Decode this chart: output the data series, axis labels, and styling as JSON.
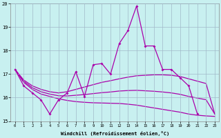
{
  "xlabel": "Windchill (Refroidissement éolien,°C)",
  "bg_color": "#c8f0f0",
  "grid_color": "#a0b8c8",
  "line_color": "#aa00aa",
  "xlim": [
    -0.5,
    23.5
  ],
  "ylim": [
    15,
    20
  ],
  "yticks": [
    15,
    16,
    17,
    18,
    19,
    20
  ],
  "xticks": [
    0,
    1,
    2,
    3,
    4,
    5,
    6,
    7,
    8,
    9,
    10,
    11,
    12,
    13,
    14,
    15,
    16,
    17,
    18,
    19,
    20,
    21,
    22,
    23
  ],
  "hours": [
    0,
    1,
    2,
    3,
    4,
    5,
    6,
    7,
    8,
    9,
    10,
    11,
    12,
    13,
    14,
    15,
    16,
    17,
    18,
    19,
    20,
    21,
    22,
    23
  ],
  "jagged": [
    17.2,
    16.5,
    16.2,
    15.9,
    15.3,
    15.9,
    16.2,
    17.1,
    16.05,
    17.4,
    17.45,
    17.0,
    18.3,
    18.85,
    19.9,
    18.2,
    18.2,
    17.2,
    17.2,
    16.85,
    16.5,
    15.3,
    null,
    null
  ],
  "smooth1": [
    17.2,
    16.75,
    16.5,
    16.35,
    16.25,
    16.2,
    16.25,
    16.35,
    16.45,
    16.55,
    16.65,
    16.72,
    16.8,
    16.87,
    16.93,
    16.95,
    16.97,
    16.97,
    16.95,
    16.9,
    16.8,
    16.7,
    16.6,
    15.3
  ],
  "smooth2": [
    17.2,
    16.65,
    16.35,
    16.15,
    16.05,
    15.95,
    15.88,
    15.83,
    15.8,
    15.78,
    15.77,
    15.76,
    15.75,
    15.72,
    15.68,
    15.62,
    15.56,
    15.5,
    15.44,
    15.38,
    15.3,
    15.25,
    15.22,
    15.2
  ],
  "smooth3": [
    17.2,
    16.7,
    16.42,
    16.25,
    16.15,
    16.08,
    16.07,
    16.1,
    16.13,
    16.17,
    16.21,
    16.24,
    16.28,
    16.3,
    16.31,
    16.29,
    16.27,
    16.24,
    16.2,
    16.14,
    16.05,
    15.98,
    15.91,
    15.3
  ]
}
